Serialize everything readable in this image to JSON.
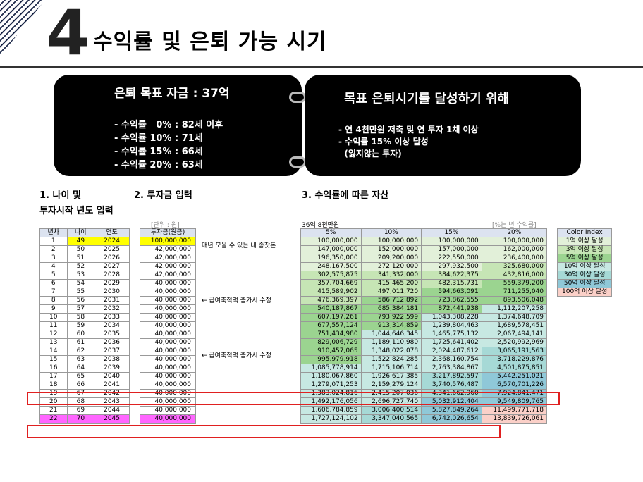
{
  "header": {
    "number": "4",
    "title": "수익률 및 은퇴 가능 시기"
  },
  "box1": {
    "title": "은퇴 목표 자금 : 37억",
    "items": [
      "- 수익률   0% : 82세 이후",
      "- 수익률 10% : 71세",
      "- 수익률 15% : 66세",
      "- 수익률 20% : 63세"
    ]
  },
  "box2": {
    "title": "목표 은퇴시기를 달성하기 위해",
    "items": [
      "- 연 4천만원 저축 및 연 투자 1채 이상",
      "- 수익률 15% 이상 달성",
      "  (잃지않는 투자)"
    ]
  },
  "sections": {
    "s1a": "1. 나이 및",
    "s1b": "투자시작 년도 입력",
    "s2": "2. 투자금 입력",
    "s3": "3. 수익률에 따른 자산"
  },
  "notes": {
    "unit": "[단위 : 원]",
    "target": "36억 8천만원",
    "pct": "[%는 년 수익률]"
  },
  "t1_headers": [
    "년차",
    "나이",
    "연도"
  ],
  "t2_header": "투자금(원금)",
  "t3_headers": [
    "5%",
    "10%",
    "15%",
    "20%"
  ],
  "memos": [
    "매년 모을 수 있는 내 종잣돈",
    "← 급여축적액 증가시 수정",
    "← 급여축적액 증가시 수정"
  ],
  "legend": {
    "title": "Color Index",
    "items": [
      "1억 이상 달성",
      "3억 이상 달성",
      "5억 이상 달성",
      "10억 이상 달성",
      "30억 이상 달성",
      "50억 이상 달성",
      "100억 이상 달성"
    ]
  },
  "rows": [
    {
      "y": "1",
      "age": "49",
      "year": "2024",
      "inv": "100,000,000",
      "v": [
        "100,000,000",
        "100,000,000",
        "100,000,000",
        "100,000,000"
      ]
    },
    {
      "y": "2",
      "age": "50",
      "year": "2025",
      "inv": "42,000,000",
      "v": [
        "147,000,000",
        "152,000,000",
        "157,000,000",
        "162,000,000"
      ]
    },
    {
      "y": "3",
      "age": "51",
      "year": "2026",
      "inv": "42,000,000",
      "v": [
        "196,350,000",
        "209,200,000",
        "222,550,000",
        "236,400,000"
      ]
    },
    {
      "y": "4",
      "age": "52",
      "year": "2027",
      "inv": "42,000,000",
      "v": [
        "248,167,500",
        "272,120,000",
        "297,932,500",
        "325,680,000"
      ]
    },
    {
      "y": "5",
      "age": "53",
      "year": "2028",
      "inv": "42,000,000",
      "v": [
        "302,575,875",
        "341,332,000",
        "384,622,375",
        "432,816,000"
      ]
    },
    {
      "y": "6",
      "age": "54",
      "year": "2029",
      "inv": "40,000,000",
      "v": [
        "357,704,669",
        "415,465,200",
        "482,315,731",
        "559,379,200"
      ]
    },
    {
      "y": "7",
      "age": "55",
      "year": "2030",
      "inv": "40,000,000",
      "v": [
        "415,589,902",
        "497,011,720",
        "594,663,091",
        "711,255,040"
      ]
    },
    {
      "y": "8",
      "age": "56",
      "year": "2031",
      "inv": "40,000,000",
      "v": [
        "476,369,397",
        "586,712,892",
        "723,862,555",
        "893,506,048"
      ]
    },
    {
      "y": "9",
      "age": "57",
      "year": "2032",
      "inv": "40,000,000",
      "v": [
        "540,187,867",
        "685,384,181",
        "872,441,938",
        "1,112,207,258"
      ]
    },
    {
      "y": "10",
      "age": "58",
      "year": "2033",
      "inv": "40,000,000",
      "v": [
        "607,197,261",
        "793,922,599",
        "1,043,308,228",
        "1,374,648,709"
      ]
    },
    {
      "y": "11",
      "age": "59",
      "year": "2034",
      "inv": "40,000,000",
      "v": [
        "677,557,124",
        "913,314,859",
        "1,239,804,463",
        "1,689,578,451"
      ]
    },
    {
      "y": "12",
      "age": "60",
      "year": "2035",
      "inv": "40,000,000",
      "v": [
        "751,434,980",
        "1,044,646,345",
        "1,465,775,132",
        "2,067,494,141"
      ]
    },
    {
      "y": "13",
      "age": "61",
      "year": "2036",
      "inv": "40,000,000",
      "v": [
        "829,006,729",
        "1,189,110,980",
        "1,725,641,402",
        "2,520,992,969"
      ]
    },
    {
      "y": "14",
      "age": "62",
      "year": "2037",
      "inv": "40,000,000",
      "v": [
        "910,457,065",
        "1,348,022,078",
        "2,024,487,612",
        "3,065,191,563"
      ]
    },
    {
      "y": "15",
      "age": "63",
      "year": "2038",
      "inv": "40,000,000",
      "v": [
        "995,979,918",
        "1,522,824,285",
        "2,368,160,754",
        "3,718,229,876"
      ]
    },
    {
      "y": "16",
      "age": "64",
      "year": "2039",
      "inv": "40,000,000",
      "v": [
        "1,085,778,914",
        "1,715,106,714",
        "2,763,384,867",
        "4,501,875,851"
      ]
    },
    {
      "y": "17",
      "age": "65",
      "year": "2040",
      "inv": "40,000,000",
      "v": [
        "1,180,067,860",
        "1,926,617,385",
        "3,217,892,597",
        "5,442,251,021"
      ]
    },
    {
      "y": "18",
      "age": "66",
      "year": "2041",
      "inv": "40,000,000",
      "v": [
        "1,279,071,253",
        "2,159,279,124",
        "3,740,576,487",
        "6,570,701,226"
      ]
    },
    {
      "y": "19",
      "age": "67",
      "year": "2042",
      "inv": "40,000,000",
      "v": [
        "1,383,024,816",
        "2,415,207,036",
        "4,341,662,960",
        "7,924,841,471"
      ]
    },
    {
      "y": "20",
      "age": "68",
      "year": "2043",
      "inv": "40,000,000",
      "v": [
        "1,492,176,056",
        "2,696,727,740",
        "5,032,912,404",
        "9,549,809,765"
      ]
    },
    {
      "y": "21",
      "age": "69",
      "year": "2044",
      "inv": "40,000,000",
      "v": [
        "1,606,784,859",
        "3,006,400,514",
        "5,827,849,264",
        "11,499,771,718"
      ]
    },
    {
      "y": "22",
      "age": "70",
      "year": "2045",
      "inv": "40,000,000",
      "v": [
        "1,727,124,102",
        "3,347,040,565",
        "6,742,026,654",
        "13,839,726,061"
      ]
    }
  ],
  "colors": {
    "white": "#ffffff",
    "c1": "#e2f0d9",
    "c3": "#c6e5b5",
    "c5": "#9bd490",
    "c10": "#c7e8e2",
    "c30": "#a6d9d6",
    "c50": "#8fc8d8",
    "c100": "#fbd0c8"
  }
}
